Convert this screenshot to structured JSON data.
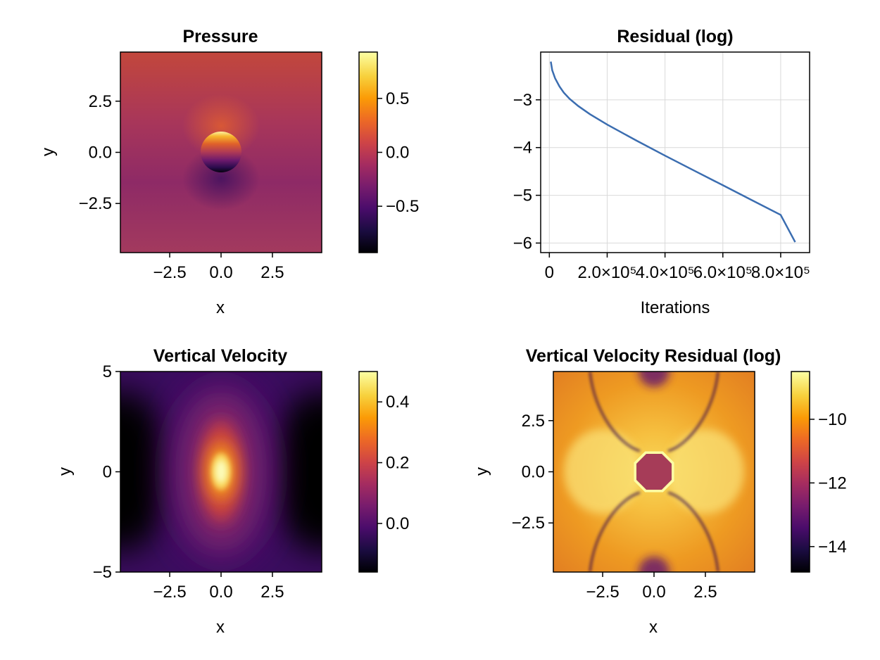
{
  "colors": {
    "inferno": [
      "#000004",
      "#1b0c41",
      "#4a0c6b",
      "#781c6d",
      "#a52c60",
      "#cf4446",
      "#ed6925",
      "#fb9b06",
      "#f7d13d",
      "#fcffa4"
    ],
    "line": "#3b6db0",
    "grid": "#d9d9d9",
    "axis": "#000000"
  },
  "chart_data": [
    {
      "id": "pressure",
      "type": "heatmap",
      "title": "Pressure",
      "xlabel": "x",
      "ylabel": "y",
      "xlim": [
        -4.9,
        4.9
      ],
      "ylim": [
        -4.9,
        4.9
      ],
      "xticks": [
        {
          "v": -2.5,
          "label": "−2.5"
        },
        {
          "v": 0,
          "label": "0.0"
        },
        {
          "v": 2.5,
          "label": "2.5"
        }
      ],
      "yticks": [
        {
          "v": -2.5,
          "label": "−2.5"
        },
        {
          "v": 0,
          "label": "0.0"
        },
        {
          "v": 2.5,
          "label": "2.5"
        }
      ],
      "colorbar": {
        "range": [
          -0.93,
          0.93
        ],
        "ticks": [
          {
            "v": -0.5,
            "label": "−0.5"
          },
          {
            "v": 0,
            "label": "0.0"
          },
          {
            "v": 0.5,
            "label": "0.5"
          }
        ]
      },
      "features": {
        "obstacle_radius": 1.0,
        "peak_value": 0.93,
        "background_value": 0.0
      }
    },
    {
      "id": "residual",
      "type": "line",
      "title": "Residual (log)",
      "xlabel": "Iterations",
      "ylabel": "",
      "xlim": [
        -30000,
        900000
      ],
      "ylim": [
        -6.2,
        -2.0
      ],
      "grid": true,
      "xticks": [
        {
          "v": 0,
          "label": "0"
        },
        {
          "v": 200000,
          "label": "2.0×10⁵"
        },
        {
          "v": 400000,
          "label": "4.0×10⁵"
        },
        {
          "v": 600000,
          "label": "6.0×10⁵"
        },
        {
          "v": 800000,
          "label": "8.0×10⁵"
        }
      ],
      "yticks": [
        {
          "v": -6,
          "label": "−6"
        },
        {
          "v": -5,
          "label": "−5"
        },
        {
          "v": -4,
          "label": "−4"
        },
        {
          "v": -3,
          "label": "−3"
        }
      ],
      "series": [
        {
          "x": [
            5000,
            10000,
            20000,
            35000,
            50000,
            70000,
            100000,
            140000,
            200000,
            300000,
            400000,
            500000,
            600000,
            700000,
            800000,
            850000
          ],
          "y": [
            -2.2,
            -2.38,
            -2.55,
            -2.72,
            -2.85,
            -2.98,
            -3.13,
            -3.3,
            -3.52,
            -3.85,
            -4.17,
            -4.48,
            -4.79,
            -5.1,
            -5.41,
            -5.98
          ]
        }
      ]
    },
    {
      "id": "vvel",
      "type": "heatmap",
      "title": "Vertical Velocity",
      "xlabel": "x",
      "ylabel": "y",
      "xlim": [
        -4.9,
        4.9
      ],
      "ylim": [
        -5,
        5
      ],
      "xticks": [
        {
          "v": -2.5,
          "label": "−2.5"
        },
        {
          "v": 0,
          "label": "0.0"
        },
        {
          "v": 2.5,
          "label": "2.5"
        }
      ],
      "yticks": [
        {
          "v": -5,
          "label": "−5"
        },
        {
          "v": 0,
          "label": "0"
        },
        {
          "v": 5,
          "label": "5"
        }
      ],
      "colorbar": {
        "range": [
          -0.16,
          0.5
        ],
        "ticks": [
          {
            "v": 0.0,
            "label": "0.0"
          },
          {
            "v": 0.2,
            "label": "0.2"
          },
          {
            "v": 0.4,
            "label": "0.4"
          }
        ]
      },
      "features": {
        "peak_value": 0.5,
        "min_value": -0.16
      }
    },
    {
      "id": "vres",
      "type": "heatmap",
      "title": "Vertical Velocity Residual (log)",
      "xlabel": "x",
      "ylabel": "y",
      "xlim": [
        -4.9,
        4.9
      ],
      "ylim": [
        -4.9,
        4.9
      ],
      "xticks": [
        {
          "v": -2.5,
          "label": "−2.5"
        },
        {
          "v": 0,
          "label": "0.0"
        },
        {
          "v": 2.5,
          "label": "2.5"
        }
      ],
      "yticks": [
        {
          "v": -2.5,
          "label": "−2.5"
        },
        {
          "v": 0,
          "label": "0.0"
        },
        {
          "v": 2.5,
          "label": "2.5"
        }
      ],
      "colorbar": {
        "range": [
          -14.8,
          -8.5
        ],
        "ticks": [
          {
            "v": -14,
            "label": "−14"
          },
          {
            "v": -12,
            "label": "−12"
          },
          {
            "v": -10,
            "label": "−10"
          }
        ]
      },
      "features": {
        "obstacle_value": -11.3,
        "max_value": -8.5,
        "min_value": -14.8
      }
    }
  ]
}
